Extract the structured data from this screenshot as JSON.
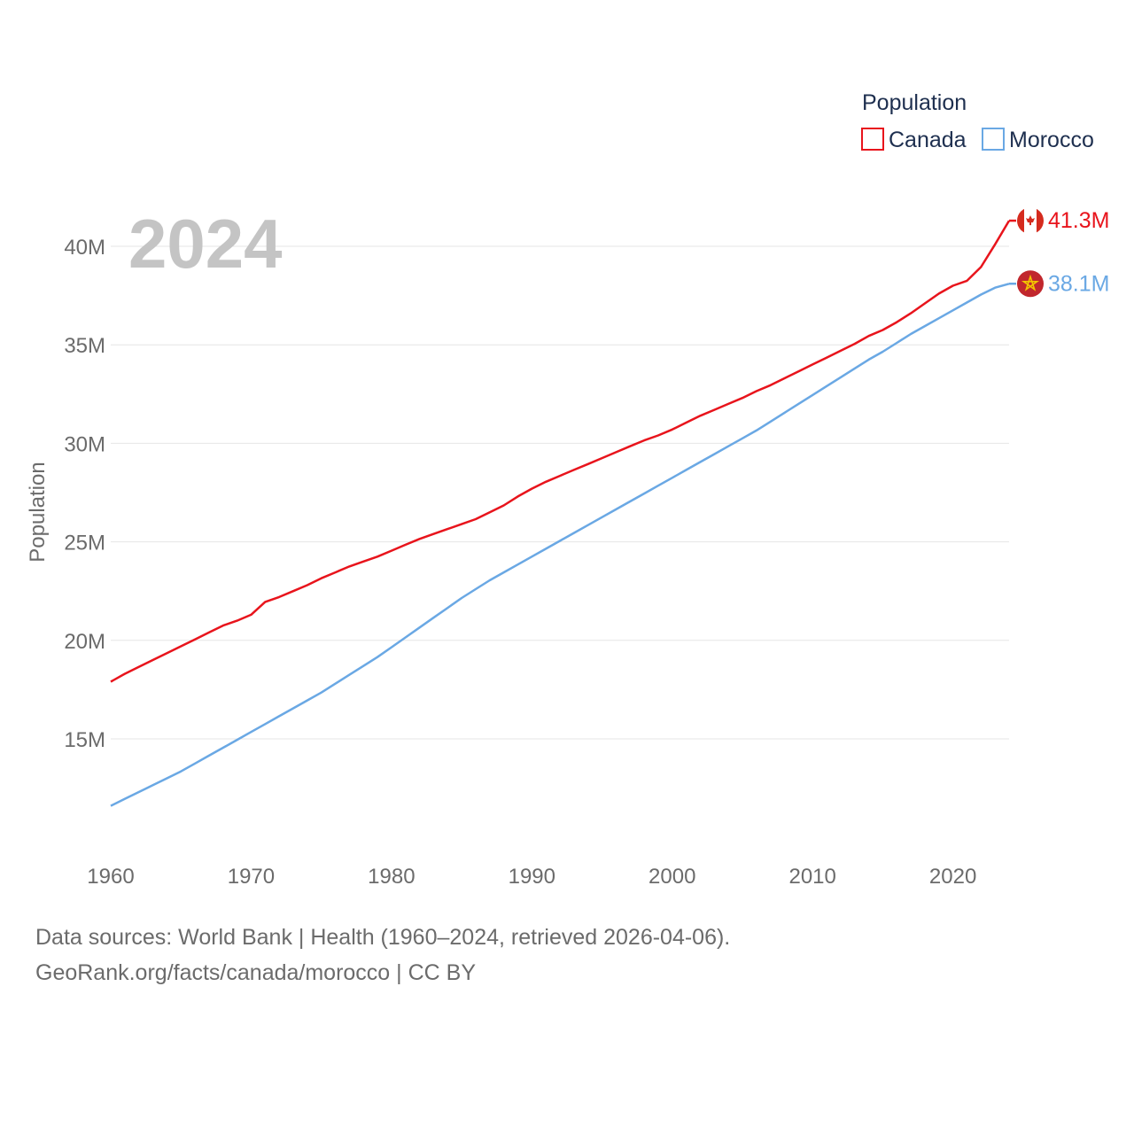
{
  "chart_data": {
    "type": "line",
    "title": "Population",
    "year_label": "2024",
    "ylabel": "Population",
    "xlabel": "",
    "xlim": [
      1960,
      2024
    ],
    "ylim": [
      10000000,
      43000000
    ],
    "x_ticks": [
      1960,
      1970,
      1980,
      1990,
      2000,
      2010,
      2020
    ],
    "y_ticks": [
      {
        "value": 15000000,
        "label": "15M"
      },
      {
        "value": 20000000,
        "label": "20M"
      },
      {
        "value": 25000000,
        "label": "25M"
      },
      {
        "value": 30000000,
        "label": "30M"
      },
      {
        "value": 35000000,
        "label": "35M"
      },
      {
        "value": 40000000,
        "label": "40M"
      }
    ],
    "grid": true,
    "legend": {
      "title": "Population",
      "position": "top-right"
    },
    "series": [
      {
        "name": "Canada",
        "color": "#e8141c",
        "end_label": "41.3M",
        "flag_icon": "canada-flag-icon",
        "points": [
          [
            1960,
            17900000
          ],
          [
            1961,
            18300000
          ],
          [
            1962,
            18650000
          ],
          [
            1963,
            19000000
          ],
          [
            1964,
            19350000
          ],
          [
            1965,
            19700000
          ],
          [
            1966,
            20050000
          ],
          [
            1967,
            20400000
          ],
          [
            1968,
            20750000
          ],
          [
            1969,
            21000000
          ],
          [
            1970,
            21300000
          ],
          [
            1971,
            21950000
          ],
          [
            1972,
            22200000
          ],
          [
            1973,
            22500000
          ],
          [
            1974,
            22800000
          ],
          [
            1975,
            23150000
          ],
          [
            1976,
            23450000
          ],
          [
            1977,
            23750000
          ],
          [
            1978,
            24000000
          ],
          [
            1979,
            24250000
          ],
          [
            1980,
            24550000
          ],
          [
            1981,
            24850000
          ],
          [
            1982,
            25150000
          ],
          [
            1983,
            25400000
          ],
          [
            1984,
            25650000
          ],
          [
            1985,
            25900000
          ],
          [
            1986,
            26150000
          ],
          [
            1987,
            26500000
          ],
          [
            1988,
            26850000
          ],
          [
            1989,
            27300000
          ],
          [
            1990,
            27700000
          ],
          [
            1991,
            28050000
          ],
          [
            1992,
            28350000
          ],
          [
            1993,
            28650000
          ],
          [
            1994,
            28950000
          ],
          [
            1995,
            29250000
          ],
          [
            1996,
            29550000
          ],
          [
            1997,
            29850000
          ],
          [
            1998,
            30150000
          ],
          [
            1999,
            30400000
          ],
          [
            2000,
            30700000
          ],
          [
            2001,
            31050000
          ],
          [
            2002,
            31400000
          ],
          [
            2003,
            31700000
          ],
          [
            2004,
            32000000
          ],
          [
            2005,
            32300000
          ],
          [
            2006,
            32650000
          ],
          [
            2007,
            32950000
          ],
          [
            2008,
            33300000
          ],
          [
            2009,
            33650000
          ],
          [
            2010,
            34000000
          ],
          [
            2011,
            34350000
          ],
          [
            2012,
            34700000
          ],
          [
            2013,
            35050000
          ],
          [
            2014,
            35450000
          ],
          [
            2015,
            35750000
          ],
          [
            2016,
            36150000
          ],
          [
            2017,
            36600000
          ],
          [
            2018,
            37100000
          ],
          [
            2019,
            37600000
          ],
          [
            2020,
            38000000
          ],
          [
            2021,
            38250000
          ],
          [
            2022,
            38950000
          ],
          [
            2023,
            40100000
          ],
          [
            2024,
            41300000
          ]
        ]
      },
      {
        "name": "Morocco",
        "color": "#6aa8e4",
        "end_label": "38.1M",
        "flag_icon": "morocco-flag-icon",
        "points": [
          [
            1960,
            11600000
          ],
          [
            1961,
            11950000
          ],
          [
            1962,
            12300000
          ],
          [
            1963,
            12650000
          ],
          [
            1964,
            13000000
          ],
          [
            1965,
            13350000
          ],
          [
            1966,
            13750000
          ],
          [
            1967,
            14150000
          ],
          [
            1968,
            14550000
          ],
          [
            1969,
            14950000
          ],
          [
            1970,
            15350000
          ],
          [
            1971,
            15750000
          ],
          [
            1972,
            16150000
          ],
          [
            1973,
            16550000
          ],
          [
            1974,
            16950000
          ],
          [
            1975,
            17350000
          ],
          [
            1976,
            17800000
          ],
          [
            1977,
            18250000
          ],
          [
            1978,
            18700000
          ],
          [
            1979,
            19150000
          ],
          [
            1980,
            19650000
          ],
          [
            1981,
            20150000
          ],
          [
            1982,
            20650000
          ],
          [
            1983,
            21150000
          ],
          [
            1984,
            21650000
          ],
          [
            1985,
            22150000
          ],
          [
            1986,
            22600000
          ],
          [
            1987,
            23050000
          ],
          [
            1988,
            23450000
          ],
          [
            1989,
            23850000
          ],
          [
            1990,
            24250000
          ],
          [
            1991,
            24650000
          ],
          [
            1992,
            25050000
          ],
          [
            1993,
            25450000
          ],
          [
            1994,
            25850000
          ],
          [
            1995,
            26250000
          ],
          [
            1996,
            26650000
          ],
          [
            1997,
            27050000
          ],
          [
            1998,
            27450000
          ],
          [
            1999,
            27850000
          ],
          [
            2000,
            28250000
          ],
          [
            2001,
            28650000
          ],
          [
            2002,
            29050000
          ],
          [
            2003,
            29450000
          ],
          [
            2004,
            29850000
          ],
          [
            2005,
            30250000
          ],
          [
            2006,
            30650000
          ],
          [
            2007,
            31100000
          ],
          [
            2008,
            31550000
          ],
          [
            2009,
            32000000
          ],
          [
            2010,
            32450000
          ],
          [
            2011,
            32900000
          ],
          [
            2012,
            33350000
          ],
          [
            2013,
            33800000
          ],
          [
            2014,
            34250000
          ],
          [
            2015,
            34650000
          ],
          [
            2016,
            35100000
          ],
          [
            2017,
            35550000
          ],
          [
            2018,
            35950000
          ],
          [
            2019,
            36350000
          ],
          [
            2020,
            36750000
          ],
          [
            2021,
            37150000
          ],
          [
            2022,
            37550000
          ],
          [
            2023,
            37900000
          ],
          [
            2024,
            38100000
          ]
        ]
      }
    ]
  },
  "footer": {
    "line1": "Data sources: World Bank | Health (1960–2024, retrieved 2026-04-06).",
    "line2": "GeoRank.org/facts/canada/morocco | CC BY"
  }
}
